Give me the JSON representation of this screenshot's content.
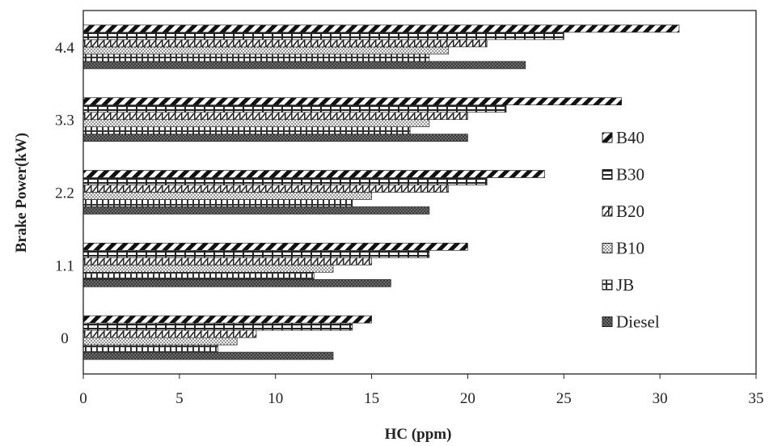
{
  "chart_data": {
    "type": "bar",
    "orientation": "horizontal",
    "title": "",
    "xlabel": "HC (ppm)",
    "ylabel": "Brake Power(kW)",
    "xlim": [
      0,
      35
    ],
    "xticks": [
      0,
      5,
      10,
      15,
      20,
      25,
      30,
      35
    ],
    "categories": [
      "0",
      "1.1",
      "2.2",
      "3.3",
      "4.4"
    ],
    "series": [
      {
        "name": "Diesel",
        "values": [
          13,
          16,
          18,
          20,
          23
        ]
      },
      {
        "name": "JB",
        "values": [
          7,
          12,
          14,
          17,
          18
        ]
      },
      {
        "name": "B10",
        "values": [
          8,
          13,
          15,
          18,
          19
        ]
      },
      {
        "name": "B20",
        "values": [
          9,
          15,
          19,
          20,
          21
        ]
      },
      {
        "name": "B30",
        "values": [
          14,
          18,
          21,
          22,
          25
        ]
      },
      {
        "name": "B40",
        "values": [
          15,
          20,
          24,
          28,
          31
        ]
      }
    ],
    "legend_order": [
      "B40",
      "B30",
      "B20",
      "B10",
      "JB",
      "Diesel"
    ],
    "legend_position": "right",
    "grid": false
  }
}
